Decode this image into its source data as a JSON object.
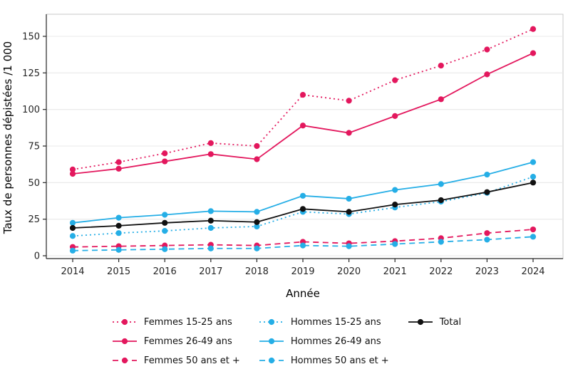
{
  "chart_data": {
    "type": "line",
    "title": "",
    "xlabel": "Année",
    "ylabel": "Taux de personnes dépistées /1 000",
    "x": [
      2014,
      2015,
      2016,
      2017,
      2018,
      2019,
      2020,
      2021,
      2022,
      2023,
      2024
    ],
    "yticks": [
      0,
      25,
      50,
      75,
      100,
      125,
      150
    ],
    "ylim": [
      0,
      164
    ],
    "grid": true,
    "legend_position": "bottom",
    "legend_columns": [
      3,
      3,
      1
    ],
    "series": [
      {
        "name": "Femmes 15-25 ans",
        "color": "#e3175d",
        "style": "dotted",
        "values": [
          59,
          64,
          70,
          77,
          75,
          110,
          106,
          120,
          130,
          141,
          155
        ]
      },
      {
        "name": "Femmes 26-49 ans",
        "color": "#e3175d",
        "style": "solid",
        "values": [
          56,
          59.5,
          64.5,
          69.5,
          66,
          89,
          84,
          95.5,
          107,
          124,
          138.5
        ]
      },
      {
        "name": "Femmes 50 ans et +",
        "color": "#e3175d",
        "style": "dashed",
        "values": [
          6,
          6.5,
          7,
          7.5,
          7,
          9.5,
          8.5,
          10,
          12,
          15.5,
          18
        ]
      },
      {
        "name": "Hommes 15-25 ans",
        "color": "#25aee6",
        "style": "dotted",
        "values": [
          13.5,
          15.5,
          17,
          19,
          20,
          30,
          28.5,
          33,
          37,
          43,
          54
        ]
      },
      {
        "name": "Hommes 26-49 ans",
        "color": "#25aee6",
        "style": "solid",
        "values": [
          22.5,
          26,
          28,
          30.5,
          30,
          41,
          39,
          45,
          49,
          55.5,
          64
        ]
      },
      {
        "name": "Hommes 50 ans et +",
        "color": "#25aee6",
        "style": "dashed",
        "values": [
          3.5,
          4,
          4.5,
          5,
          5,
          7,
          6.5,
          8,
          9.5,
          11,
          13
        ]
      },
      {
        "name": "Total",
        "color": "#111111",
        "style": "solid",
        "values": [
          19,
          20.5,
          22.5,
          24,
          23,
          32,
          30,
          35,
          38,
          43.5,
          50
        ]
      }
    ],
    "colors": {
      "femmes": "#e3175d",
      "hommes": "#25aee6",
      "total": "#111111",
      "gridline": "#e8e8e8",
      "axis": "#262626",
      "panel_border": "#c9c9c9"
    }
  }
}
